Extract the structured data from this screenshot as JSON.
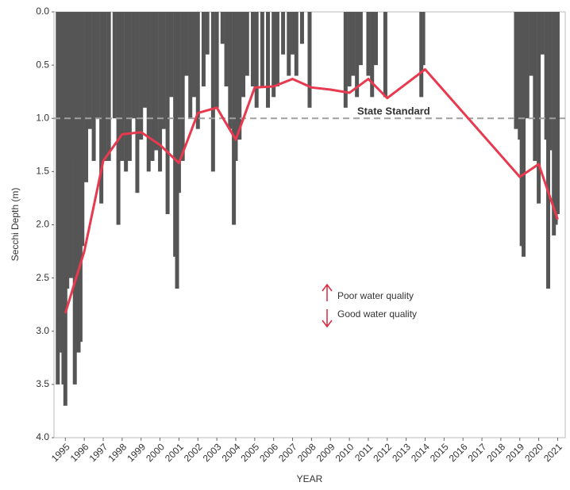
{
  "chart_data": {
    "type": "bar-line",
    "y_label": "Secchi Depth (m)",
    "x_label": "YEAR",
    "xlim": [
      1994.4,
      2021.4
    ],
    "xticks": [
      1995,
      1996,
      1997,
      1998,
      1999,
      2000,
      2001,
      2002,
      2003,
      2004,
      2005,
      2006,
      2007,
      2008,
      2009,
      2010,
      2011,
      2012,
      2013,
      2014,
      2015,
      2016,
      2017,
      2018,
      2019,
      2020,
      2021
    ],
    "ylim": [
      4,
      0
    ],
    "yticks": [
      {
        "value": 0,
        "label": "0.0"
      },
      0.5,
      {
        "value": 1,
        "label": "1.0"
      },
      1.5,
      {
        "value": 2,
        "label": "2.0"
      },
      2.5,
      {
        "value": 3,
        "label": "3.0"
      },
      3.5,
      {
        "value": 4,
        "label": "4.0"
      }
    ],
    "measurements": {
      "color": "#555555",
      "x": [
        1994.6,
        1994.7,
        1994.8,
        1994.9,
        1995.0,
        1995.1,
        1995.2,
        1995.3,
        1995.4,
        1995.5,
        1995.6,
        1995.7,
        1995.8,
        1995.9,
        1996.1,
        1996.3,
        1996.5,
        1996.7,
        1996.9,
        1997.1,
        1997.3,
        1997.6,
        1997.8,
        1998.0,
        1998.2,
        1998.4,
        1998.6,
        1998.8,
        1999.0,
        1999.2,
        1999.4,
        1999.6,
        1999.8,
        2000.0,
        2000.2,
        2000.4,
        2000.6,
        2000.8,
        2000.9,
        2001.0,
        2001.2,
        2001.4,
        2001.6,
        2001.8,
        2002.0,
        2002.3,
        2002.5,
        2002.8,
        2003.0,
        2003.3,
        2003.5,
        2003.7,
        2003.9,
        2004.0,
        2004.2,
        2004.4,
        2004.6,
        2004.9,
        2005.1,
        2005.4,
        2005.7,
        2006.0,
        2006.2,
        2006.5,
        2006.8,
        2007.0,
        2007.2,
        2007.5,
        2007.9,
        2009.8,
        2010.0,
        2010.2,
        2010.4,
        2010.6,
        2011.0,
        2011.2,
        2011.4,
        2011.9,
        2013.8,
        2013.9,
        2018.8,
        2019.0,
        2019.1,
        2019.2,
        2019.4,
        2019.6,
        2019.8,
        2020.0,
        2020.2,
        2020.4,
        2020.5,
        2020.6,
        2020.8,
        2020.9,
        2021.0
      ],
      "values": [
        3.5,
        2.9,
        3.2,
        3.5,
        3.7,
        2.6,
        2.0,
        2.5,
        1.4,
        3.5,
        3.1,
        3.2,
        3.1,
        2.2,
        1.6,
        1.1,
        1.4,
        1.0,
        1.8,
        1.4,
        1.4,
        1.0,
        2.0,
        1.4,
        1.5,
        1.4,
        1.0,
        1.7,
        1.2,
        0.9,
        1.5,
        1.4,
        1.3,
        1.5,
        1.1,
        1.9,
        0.8,
        2.3,
        2.6,
        1.7,
        1.4,
        0.6,
        1.0,
        0.8,
        1.1,
        0.7,
        0.4,
        1.5,
        0.9,
        0.3,
        0.7,
        1.1,
        2.0,
        1.4,
        1.2,
        0.8,
        0.6,
        0.7,
        0.9,
        0.7,
        0.9,
        0.8,
        0.7,
        0.4,
        0.6,
        0.4,
        0.6,
        0.3,
        0.9,
        0.9,
        0.7,
        0.6,
        0.8,
        0.5,
        0.6,
        0.8,
        0.5,
        0.8,
        0.8,
        0.5,
        1.1,
        1.2,
        2.2,
        2.3,
        1.0,
        0.6,
        1.4,
        1.8,
        0.4,
        1.2,
        2.6,
        1.3,
        2.1,
        2.0,
        1.9
      ]
    },
    "annual_mean": {
      "color": "#e8394f",
      "x": [
        1995,
        1996,
        1997,
        1998,
        1999,
        2000,
        2001,
        2002,
        2003,
        2004,
        2005,
        2006,
        2007,
        2008,
        2009,
        2010,
        2011,
        2012,
        2014,
        2019,
        2020,
        2021
      ],
      "values": [
        2.83,
        2.25,
        1.4,
        1.15,
        1.13,
        1.25,
        1.42,
        0.95,
        0.9,
        1.2,
        0.71,
        0.7,
        0.63,
        0.71,
        0.73,
        0.76,
        0.63,
        0.81,
        0.54,
        1.55,
        1.43,
        1.95
      ]
    },
    "standard": {
      "label": "State Standard",
      "value": 1.0,
      "color": "#a0a0a0"
    },
    "annotations": [
      "Poor water quality",
      "Good water quality"
    ]
  }
}
